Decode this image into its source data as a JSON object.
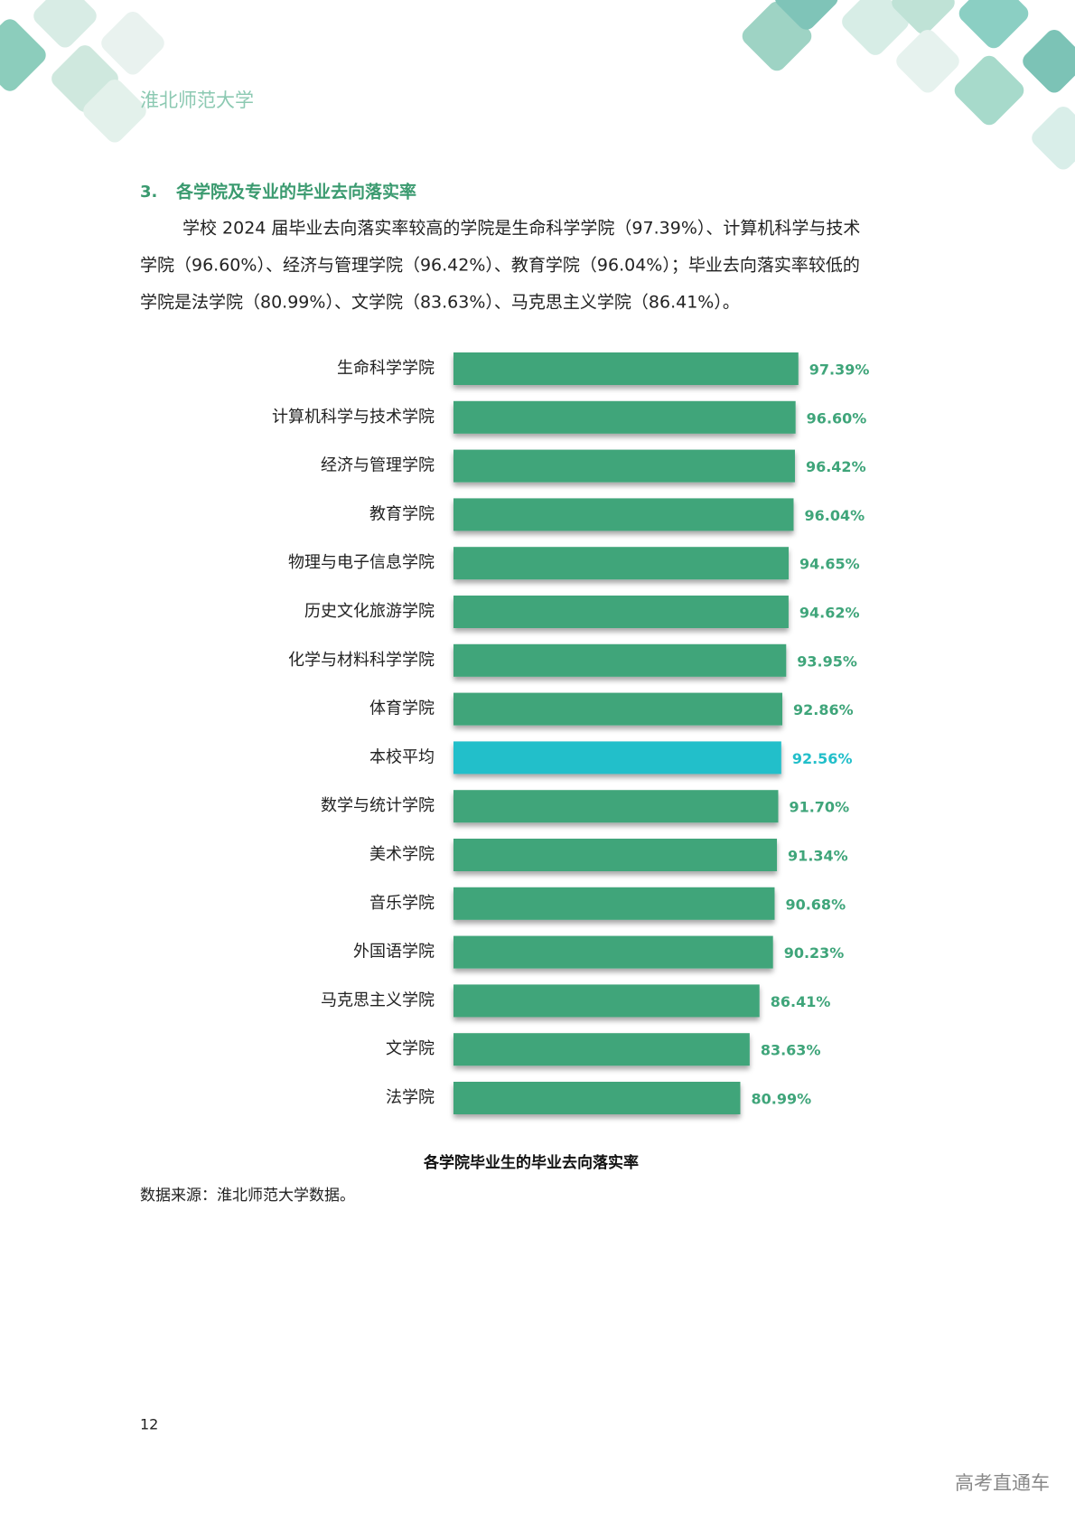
{
  "header": {
    "title": "淮北师范大学"
  },
  "section": {
    "number": "3.",
    "title": "各学院及专业的毕业去向落实率"
  },
  "paragraph": {
    "lines": [
      "学校 2024 届毕业去向落实率较高的学院是生命科学学院（97.39%）、计算机科学与技术",
      "学院（96.60%）、经济与管理学院（96.42%）、教育学院（96.04%）；毕业去向落实率较低的",
      "学院是法学院（80.99%）、文学院（83.63%）、马克思主义学院（86.41%）。"
    ]
  },
  "chart_data": {
    "type": "bar",
    "orientation": "horizontal",
    "title": "各学院毕业生的毕业去向落实率",
    "categories": [
      "生命科学学院",
      "计算机科学与技术学院",
      "经济与管理学院",
      "教育学院",
      "物理与电子信息学院",
      "历史文化旅游学院",
      "化学与材料科学学院",
      "体育学院",
      "本校平均",
      "数学与统计学院",
      "美术学院",
      "音乐学院",
      "外国语学院",
      "马克思主义学院",
      "文学院",
      "法学院"
    ],
    "values": [
      97.39,
      96.6,
      96.42,
      96.04,
      94.65,
      94.62,
      93.95,
      92.86,
      92.56,
      91.7,
      91.34,
      90.68,
      90.23,
      86.41,
      83.63,
      80.99
    ],
    "value_labels": [
      "97.39%",
      "96.60%",
      "96.42%",
      "96.04%",
      "94.65%",
      "94.62%",
      "93.95%",
      "92.86%",
      "92.56%",
      "91.70%",
      "91.34%",
      "90.68%",
      "90.23%",
      "86.41%",
      "83.63%",
      "80.99%"
    ],
    "colors": [
      "#3fa57a",
      "#3fa57a",
      "#3fa57a",
      "#3fa57a",
      "#3fa57a",
      "#3fa57a",
      "#3fa57a",
      "#3fa57a",
      "#22bfca",
      "#3fa57a",
      "#3fa57a",
      "#3fa57a",
      "#3fa57a",
      "#3fa57a",
      "#3fa57a",
      "#3fa57a"
    ],
    "xlim": [
      0,
      100
    ]
  },
  "source": "数据来源：淮北师范大学数据。",
  "page_number": "12",
  "watermark": "高考直通车"
}
